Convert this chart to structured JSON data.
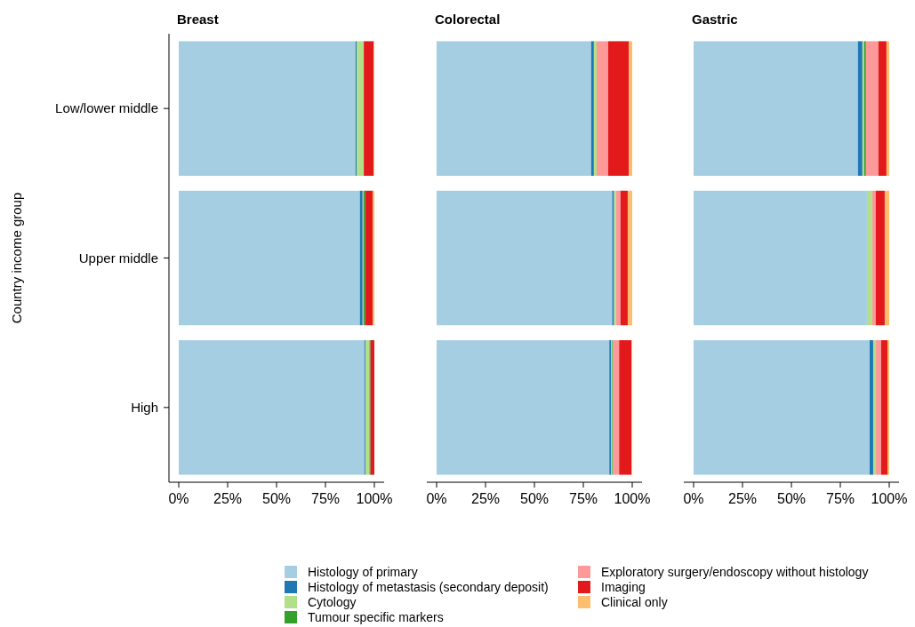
{
  "chart_data": [
    {
      "type": "bar",
      "orientation": "horizontal",
      "stacked": true,
      "title": "Breast",
      "ylabel": "Country income group",
      "categories": [
        "Low/lower middle",
        "Upper middle",
        "High"
      ],
      "xlim": [
        -5,
        105
      ],
      "xticks": [
        {
          "value": 0,
          "label": "0%"
        },
        {
          "value": 25,
          "label": "25%"
        },
        {
          "value": 50,
          "label": "50%"
        },
        {
          "value": 75,
          "label": "75%"
        },
        {
          "value": 100,
          "label": "100%"
        }
      ],
      "legend": "bottom",
      "series": [
        {
          "name": "Histology of primary",
          "color": "#a6cee3",
          "values": [
            90.4,
            92.6,
            94.9
          ]
        },
        {
          "name": "Histology of metastasis (secondary deposit)",
          "color": "#1f78b4",
          "values": [
            0.5,
            1.4,
            0.5
          ]
        },
        {
          "name": "Cytology",
          "color": "#b2df8a",
          "values": [
            3.7,
            0.5,
            2.1
          ]
        },
        {
          "name": "Tumour specific markers",
          "color": "#33a02c",
          "values": [
            0,
            0.8,
            0.5
          ]
        },
        {
          "name": "Exploratory surgery/endoscopy without histology",
          "color": "#fb9a99",
          "values": [
            0,
            0,
            0
          ]
        },
        {
          "name": "Imaging",
          "color": "#e31a1c",
          "values": [
            5.0,
            3.8,
            2.0
          ]
        },
        {
          "name": "Clinical only",
          "color": "#fdbf6f",
          "values": [
            0.4,
            0.9,
            0
          ]
        }
      ]
    },
    {
      "type": "bar",
      "orientation": "horizontal",
      "stacked": true,
      "title": "Colorectal",
      "categories": [
        null,
        null,
        null
      ],
      "tick_labels": "x",
      "xlim": [
        -5,
        105
      ],
      "xticks": [
        {
          "value": 0,
          "label": "0%"
        },
        {
          "value": 25,
          "label": "25%"
        },
        {
          "value": 50,
          "label": "50%"
        },
        {
          "value": 75,
          "label": "75%"
        },
        {
          "value": 100,
          "label": "100%"
        }
      ],
      "series": [
        {
          "color": "#a6cee3",
          "values": [
            79.0,
            89.8,
            88.3
          ]
        },
        {
          "color": "#1f78b4",
          "values": [
            1.4,
            0.9,
            0.9
          ]
        },
        {
          "color": "#b2df8a",
          "values": [
            1.4,
            0.9,
            0.5
          ]
        },
        {
          "color": "#33a02c",
          "values": [
            0,
            0,
            0.5
          ]
        },
        {
          "color": "#fb9a99",
          "values": [
            5.9,
            2.4,
            3.1
          ]
        },
        {
          "color": "#e31a1c",
          "values": [
            10.5,
            3.7,
            6.3
          ]
        },
        {
          "color": "#fdbf6f",
          "values": [
            1.8,
            2.3,
            0.4
          ]
        }
      ]
    },
    {
      "type": "bar",
      "orientation": "horizontal",
      "stacked": true,
      "title": "Gastric",
      "categories": [
        null,
        null,
        null
      ],
      "tick_labels": "x",
      "xlim": [
        -5,
        105
      ],
      "xticks": [
        {
          "value": 0,
          "label": "0%"
        },
        {
          "value": 25,
          "label": "25%"
        },
        {
          "value": 50,
          "label": "50%"
        },
        {
          "value": 75,
          "label": "75%"
        },
        {
          "value": 100,
          "label": "100%"
        }
      ],
      "series": [
        {
          "color": "#a6cee3",
          "values": [
            84.0,
            88.6,
            90.0
          ]
        },
        {
          "color": "#1f78b4",
          "values": [
            2.3,
            0,
            1.8
          ]
        },
        {
          "color": "#b2df8a",
          "values": [
            0.9,
            2.7,
            1.4
          ]
        },
        {
          "color": "#33a02c",
          "values": [
            0.9,
            0,
            0
          ]
        },
        {
          "color": "#fb9a99",
          "values": [
            6.4,
            1.8,
            2.7
          ]
        },
        {
          "color": "#e31a1c",
          "values": [
            4.1,
            4.6,
            3.2
          ]
        },
        {
          "color": "#fdbf6f",
          "values": [
            1.4,
            2.3,
            0.9
          ]
        }
      ]
    }
  ]
}
